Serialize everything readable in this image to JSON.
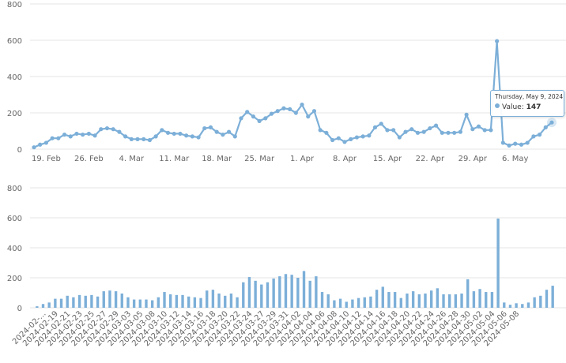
{
  "chart_data": [
    {
      "type": "line",
      "x_start": "2024-02-17",
      "values": [
        10,
        25,
        35,
        60,
        60,
        80,
        70,
        85,
        80,
        85,
        75,
        110,
        115,
        110,
        95,
        70,
        55,
        55,
        55,
        50,
        70,
        105,
        90,
        85,
        85,
        75,
        70,
        65,
        115,
        120,
        95,
        80,
        95,
        70,
        170,
        205,
        180,
        155,
        170,
        195,
        210,
        225,
        220,
        200,
        245,
        180,
        210,
        105,
        90,
        50,
        60,
        40,
        55,
        65,
        70,
        75,
        120,
        140,
        105,
        105,
        65,
        95,
        110,
        90,
        95,
        115,
        130,
        90,
        90,
        90,
        95,
        190,
        110,
        125,
        105,
        105,
        595,
        35,
        20,
        30,
        25,
        35,
        70,
        80,
        120,
        147
      ],
      "x_tick_labels": [
        "19. Feb",
        "26. Feb",
        "4. Mar",
        "11. Mar",
        "18. Mar",
        "25. Mar",
        "1. Apr",
        "8. Apr",
        "15. Apr",
        "22. Apr",
        "29. Apr",
        "6. May"
      ],
      "y_ticks": [
        "0",
        "200",
        "400",
        "600",
        "800"
      ],
      "ylim": [
        0,
        800
      ],
      "grid": true,
      "tooltip": {
        "date": "Thursday, May 9, 2024",
        "label": "Value:",
        "value": "147"
      }
    },
    {
      "type": "bar",
      "values_ref": "same as line chart",
      "x_tick_labels": [
        "2024-02-...",
        "2024-02-19",
        "2024-02-21",
        "2024-02-23",
        "2024-02-25",
        "2024-02-27",
        "2024-02-29",
        "2024-03-03",
        "2024-03-05",
        "2024-03-08",
        "2024-03-10",
        "2024-03-12",
        "2024-03-14",
        "2024-03-16",
        "2024-03-18",
        "2024-03-20",
        "2024-03-22",
        "2024-03-24",
        "2024-03-27",
        "2024-03-29",
        "2024-03-31",
        "2024-04-02",
        "2024-04-04",
        "2024-04-06",
        "2024-04-08",
        "2024-04-10",
        "2024-04-12",
        "2024-04-14",
        "2024-04-16",
        "2024-04-18",
        "2024-04-20",
        "2024-04-22",
        "2024-04-24",
        "2024-04-26",
        "2024-04-28",
        "2024-04-30",
        "2024-05-02",
        "2024-05-04",
        "2024-05-06",
        "2024-05-08"
      ],
      "y_ticks": [
        "0",
        "200",
        "400",
        "600",
        "800"
      ],
      "ylim": [
        0,
        800
      ],
      "grid": true
    }
  ],
  "colors": {
    "series": "#7cafd8",
    "grid": "#e6e6e6",
    "text": "#666666"
  }
}
